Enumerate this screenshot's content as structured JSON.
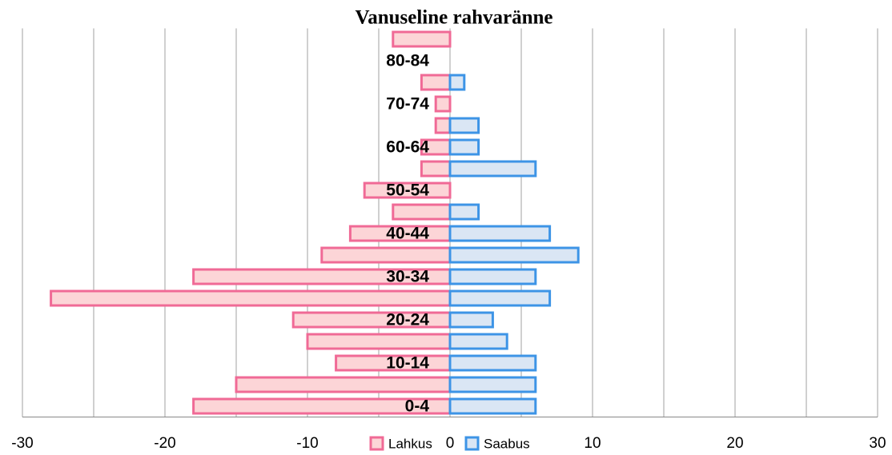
{
  "chart_data": {
    "type": "bar",
    "orientation": "horizontal",
    "stacked": false,
    "title": "Vanuseline rahvaränne",
    "categories": [
      "0-4",
      null,
      "10-14",
      null,
      "20-24",
      null,
      "30-34",
      null,
      "40-44",
      null,
      "50-54",
      null,
      "60-64",
      null,
      "70-74",
      null,
      "80-84",
      null
    ],
    "series": [
      {
        "name": "Lahkus",
        "color": "#f06a96",
        "fill": "#fcd5d7",
        "values": [
          -18,
          -15,
          -8,
          -10,
          -11,
          -28,
          -18,
          -9,
          -7,
          -4,
          -6,
          -2,
          -2,
          -1,
          -1,
          -2,
          0,
          -4
        ]
      },
      {
        "name": "Saabus",
        "color": "#3d94e6",
        "fill": "#dae6f4",
        "values": [
          6,
          6,
          6,
          4,
          3,
          7,
          6,
          9,
          7,
          2,
          0,
          6,
          2,
          2,
          0,
          1,
          0,
          0
        ]
      }
    ],
    "xlim": [
      -30,
      30
    ],
    "xticks": [
      -30,
      -20,
      -10,
      0,
      10,
      20,
      30
    ],
    "xminorticks": [
      -25,
      -15,
      -5,
      5,
      15,
      25
    ],
    "grid": true,
    "legend": "bottom"
  }
}
